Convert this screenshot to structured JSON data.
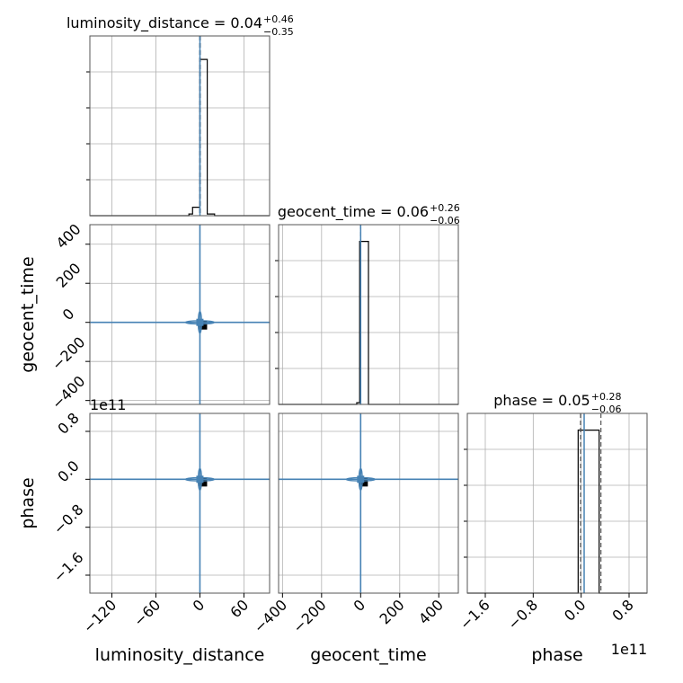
{
  "chart_data": {
    "type": "corner",
    "parameters": [
      "luminosity_distance",
      "geocent_time",
      "phase"
    ],
    "grid": true,
    "colors": {
      "contour": "#4682b4",
      "truth": "#4682b4",
      "hist": "#000000",
      "quantile": "#555555"
    },
    "offset_text": "1e11",
    "titles": [
      {
        "label": "luminosity_distance = 0.04",
        "plus": "+0.46",
        "minus": "−0.35"
      },
      {
        "label": "geocent_time = 0.06",
        "plus": "+0.26",
        "minus": "−0.06"
      },
      {
        "label": "phase = 0.05",
        "plus": "+0.28",
        "minus": "−0.06"
      }
    ],
    "axes": {
      "luminosity_distance": {
        "lim": [
          -150,
          95
        ],
        "ticks": [
          -120,
          -60,
          0,
          60
        ],
        "tick_labels": [
          "−120",
          "−60",
          "0",
          "60"
        ]
      },
      "geocent_time": {
        "lim": [
          -420,
          500
        ],
        "ticks": [
          -400,
          -200,
          0,
          200,
          400
        ],
        "tick_labels": [
          "−400",
          "−200",
          "0",
          "200",
          "400"
        ]
      },
      "phase": {
        "lim": [
          -1.9,
          1.1
        ],
        "ticks": [
          -1.6,
          -0.8,
          0.0,
          0.8
        ],
        "tick_labels": [
          "−1.6",
          "−0.8",
          "0.0",
          "0.8"
        ]
      }
    },
    "diag": [
      {
        "param": "luminosity_distance",
        "bins": [
          -15,
          -10,
          0,
          10,
          20,
          30
        ],
        "counts": [
          0.01,
          0.05,
          0.93,
          0.01,
          0.0
        ],
        "truth": 0.04,
        "q_lo": -0.31,
        "q_hi": 0.5,
        "ymax": 1.0
      },
      {
        "param": "geocent_time",
        "bins": [
          -20,
          -5,
          5,
          40,
          60
        ],
        "counts": [
          0.01,
          0.97,
          0.97,
          0.0
        ],
        "truth": 0.06,
        "q_lo": 0.0,
        "q_hi": 0.32,
        "ymax": 1.0
      },
      {
        "param": "phase",
        "bins": [
          -0.25,
          -0.05,
          0.05,
          0.3
        ],
        "counts": [
          0.0,
          0.97,
          0.97
        ],
        "truth": 0.05,
        "q_lo": -0.01,
        "q_hi": 0.33,
        "ymax": 1.0
      }
    ],
    "offdiag": [
      {
        "row": 1,
        "col": 0,
        "x_param": "luminosity_distance",
        "y_param": "geocent_time",
        "truth": [
          0.0,
          0.0
        ]
      },
      {
        "row": 2,
        "col": 0,
        "x_param": "luminosity_distance",
        "y_param": "phase",
        "truth": [
          0.0,
          0.0
        ]
      },
      {
        "row": 2,
        "col": 1,
        "x_param": "geocent_time",
        "y_param": "phase",
        "truth": [
          0.0,
          0.0
        ]
      }
    ]
  }
}
